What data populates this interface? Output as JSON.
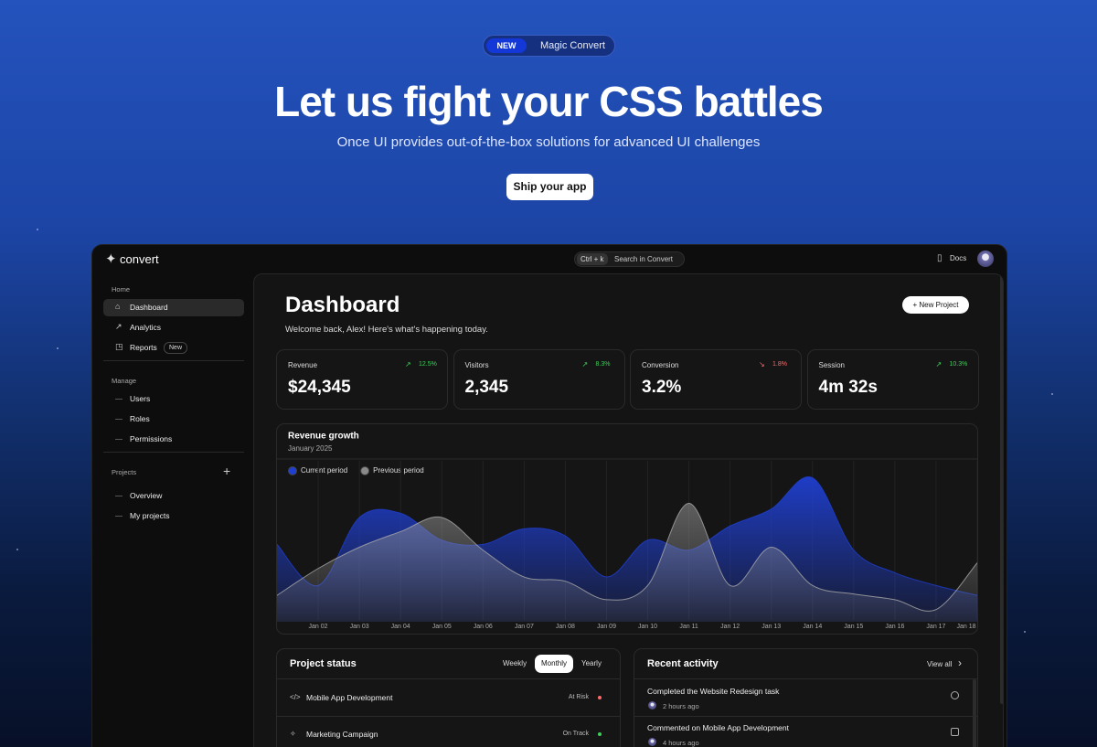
{
  "hero": {
    "badge": "NEW",
    "badge_text": "Magic Convert",
    "title": "Let us fight your CSS battles",
    "subtitle": "Once UI provides out-of-the-box solutions for advanced UI challenges",
    "button": "Ship your app"
  },
  "topbar": {
    "logo": "convert",
    "shortcut": "Ctrl + k",
    "search": "Search in Convert",
    "docs": "Docs"
  },
  "sidebar": {
    "sections": [
      {
        "label": "Home",
        "items": [
          {
            "label": "Dashboard",
            "active": true
          },
          {
            "label": "Analytics"
          },
          {
            "label": "Reports",
            "badge": "New"
          }
        ]
      },
      {
        "label": "Manage",
        "items": [
          {
            "label": "Users"
          },
          {
            "label": "Roles"
          },
          {
            "label": "Permissions"
          }
        ]
      },
      {
        "label": "Projects",
        "items": [
          {
            "label": "Overview"
          },
          {
            "label": "My projects"
          }
        ]
      }
    ]
  },
  "header": {
    "title": "Dashboard",
    "welcome": "Welcome back, Alex! Here's what's happening today.",
    "button": "New Project"
  },
  "stats": [
    {
      "label": "Revenue",
      "value": "$24,345",
      "change": "12.5%",
      "trend": "up"
    },
    {
      "label": "Visitors",
      "value": "2,345",
      "change": "8.3%",
      "trend": "up"
    },
    {
      "label": "Conversion",
      "value": "3.2%",
      "change": "1.8%",
      "trend": "down"
    },
    {
      "label": "Session",
      "value": "4m 32s",
      "change": "10.3%",
      "trend": "up"
    }
  ],
  "chart_data": {
    "type": "area",
    "title": "Revenue growth",
    "subtitle": "January 2025",
    "categories": [
      null,
      "Jan 02",
      "Jan 03",
      "Jan 04",
      "Jan 05",
      "Jan 06",
      "Jan 07",
      "Jan 08",
      "Jan 09",
      "Jan 10",
      "Jan 11",
      "Jan 12",
      "Jan 13",
      "Jan 14",
      "Jan 15",
      "Jan 16",
      "Jan 17",
      "Jan 18"
    ],
    "ylim": [
      0,
      100
    ],
    "grid": true,
    "series": [
      {
        "name": "Current period",
        "color": "#1f3fd0",
        "values": [
          52,
          23,
          71,
          74,
          55,
          52,
          63,
          58,
          29,
          55,
          48,
          65,
          77,
          99,
          48,
          32,
          23,
          16
        ]
      },
      {
        "name": "Previous period",
        "color": "#8a8a8a",
        "values": [
          16,
          35,
          50,
          61,
          71,
          48,
          29,
          26,
          13,
          23,
          81,
          23,
          50,
          23,
          17,
          13,
          6,
          39
        ]
      }
    ]
  },
  "project_status": {
    "title": "Project status",
    "tabs": [
      "Weekly",
      "Monthly",
      "Yearly"
    ],
    "active_tab": 1,
    "rows": [
      {
        "name": "Mobile App Development",
        "status": "At Risk",
        "color": "#ff6b6b"
      },
      {
        "name": "Marketing Campaign",
        "status": "On Track",
        "color": "#3ecf5a"
      }
    ]
  },
  "recent_activity": {
    "title": "Recent activity",
    "link": "View all",
    "items": [
      {
        "text": "Completed the Website Redesign task",
        "time": "2 hours ago"
      },
      {
        "text": "Commented on Mobile App Development",
        "time": "4 hours ago"
      }
    ]
  }
}
